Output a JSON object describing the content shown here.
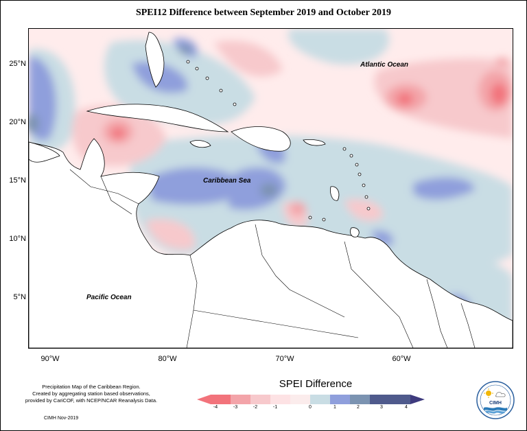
{
  "title": "SPEI12 Difference between September 2019 and October 2019",
  "map": {
    "latitude_labels": [
      "25°N",
      "20°N",
      "15°N",
      "10°N",
      "5°N"
    ],
    "longitude_labels": [
      "90°W",
      "80°W",
      "70°W",
      "60°W"
    ],
    "region_labels": {
      "atlantic": "Atlantic Ocean",
      "caribbean": "Caribbean Sea",
      "pacific": "Pacific Ocean"
    },
    "colors": {
      "ocean_base": "#ffecec",
      "land": "#ffffff",
      "coast": "#000000"
    }
  },
  "legend": {
    "title": "SPEI Difference",
    "ticks": [
      "-4",
      "-3",
      "-2",
      "-1",
      "0",
      "1",
      "2",
      "3",
      "4"
    ],
    "colors": [
      "#f2737b",
      "#f3a4a9",
      "#f7c9cc",
      "#fde2e4",
      "#fbecec",
      "#c9dde4",
      "#8f9fdc",
      "#7b93b1",
      "#4f5a8c",
      "#3e3b7e"
    ]
  },
  "notes": {
    "line1": "Precipitation Map of the Caribbean Region.",
    "line2": "Created by aggregating station based observations,",
    "line3": "provided by CariCOF, with NCEP/NCAR Reanalysis Data.",
    "credit": "CIMH Nov-2019"
  },
  "logo": {
    "text": "CIMH"
  }
}
